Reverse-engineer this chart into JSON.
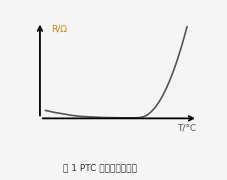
{
  "title": "图 1 PTC 的温度特性曲线",
  "xlabel": "T/°C",
  "ylabel": "R/Ω",
  "bg_color": "#f5f5f5",
  "curve_color": "#555555",
  "axis_color": "#000000",
  "label_color": "#d4820a",
  "xlabel_color": "#555555",
  "title_color": "#333333",
  "figsize": [
    2.27,
    1.8
  ],
  "dpi": 100,
  "curve_x": [
    0.0,
    0.05,
    0.1,
    0.15,
    0.2,
    0.25,
    0.3,
    0.35,
    0.4,
    0.45,
    0.5,
    0.52,
    0.54,
    0.56,
    0.58,
    0.6,
    0.62,
    0.64,
    0.66,
    0.68,
    0.7,
    0.72,
    0.74,
    0.76,
    0.78,
    0.8
  ],
  "curve_y": [
    0.62,
    0.58,
    0.55,
    0.52,
    0.5,
    0.49,
    0.48,
    0.475,
    0.472,
    0.47,
    0.47,
    0.472,
    0.48,
    0.5,
    0.54,
    0.6,
    0.68,
    0.78,
    0.9,
    1.04,
    1.2,
    1.38,
    1.58,
    1.8,
    2.04,
    2.3
  ]
}
